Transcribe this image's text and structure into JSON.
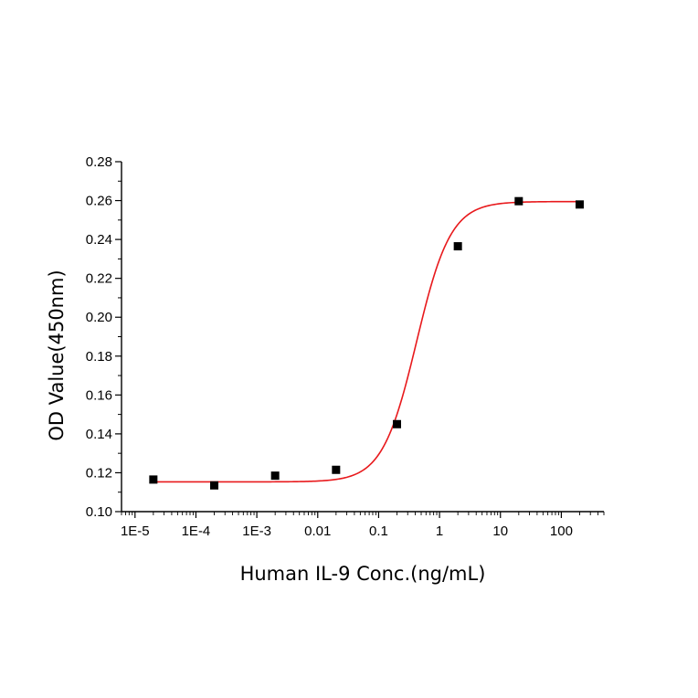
{
  "chart_data": {
    "type": "scatter",
    "title": "",
    "xlabel": "Human IL-9 Conc.(ng/mL)",
    "ylabel": "OD Value(450nm)",
    "x_scale": "log",
    "xlim": [
      6e-06,
      500
    ],
    "ylim": [
      0.1,
      0.28
    ],
    "x_ticks": [
      1e-05,
      0.0001,
      0.001,
      0.01,
      0.1,
      1,
      10,
      100
    ],
    "x_tick_labels": [
      "1E-5",
      "1E-4",
      "1E-3",
      "0.01",
      "0.1",
      "1",
      "10",
      "100"
    ],
    "y_ticks": [
      0.1,
      0.12,
      0.14,
      0.16,
      0.18,
      0.2,
      0.22,
      0.24,
      0.26,
      0.28
    ],
    "y_tick_labels": [
      "0.10",
      "0.12",
      "0.14",
      "0.16",
      "0.18",
      "0.20",
      "0.22",
      "0.24",
      "0.26",
      "0.28"
    ],
    "grid": false,
    "series": [
      {
        "marker": "square",
        "color": "#000000",
        "x": [
          2e-05,
          0.0002,
          0.002,
          0.02,
          0.2,
          2,
          20,
          200
        ],
        "y": [
          0.1165,
          0.1135,
          0.1185,
          0.1215,
          0.145,
          0.2365,
          0.2597,
          0.258
        ]
      }
    ],
    "fit_curve": {
      "model": "4-parameter logistic",
      "color": "#e8191c",
      "bottom": 0.1153,
      "top": 0.2595,
      "ec50": 0.42,
      "hill": 1.55,
      "x_range": [
        2e-05,
        200
      ]
    }
  }
}
